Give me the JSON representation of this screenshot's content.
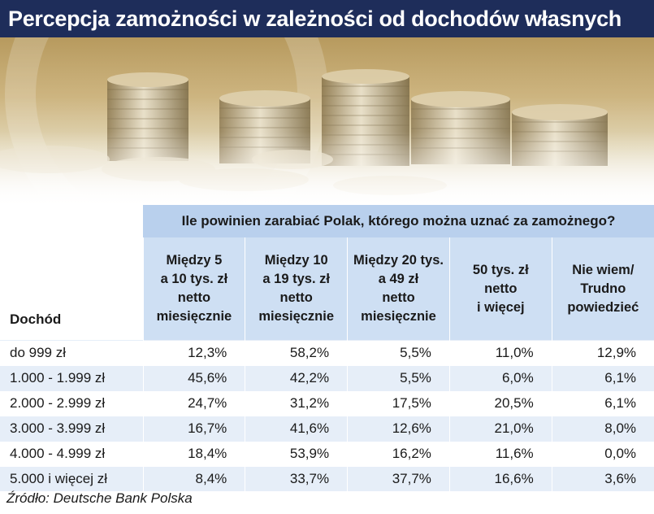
{
  "header": {
    "title": "Percepcja zamożności w zależności od dochodów własnych"
  },
  "chart_data": {
    "type": "table",
    "super_header": "Ile powinien zarabiać Polak, którego można uznać za zamożnego?",
    "row_header_label": "Dochód",
    "columns": [
      [
        "Między 5",
        "a 10 tys. zł",
        "netto",
        "miesięcznie"
      ],
      [
        "Między 10",
        "a 19 tys. zł",
        "netto",
        "miesięcznie"
      ],
      [
        "Między 20 tys.",
        "a 49 zł",
        "netto",
        "miesięcznie"
      ],
      [
        "50 tys. zł",
        "netto",
        "i więcej"
      ],
      [
        "Nie wiem/",
        "Trudno",
        "powiedzieć"
      ]
    ],
    "rows": [
      {
        "label": "do 999 zł",
        "values": [
          "12,3%",
          "58,2%",
          "5,5%",
          "11,0%",
          "12,9%"
        ]
      },
      {
        "label": "1.000 - 1.999 zł",
        "values": [
          "45,6%",
          "42,2%",
          "5,5%",
          "6,0%",
          "6,1%"
        ]
      },
      {
        "label": "2.000 - 2.999 zł",
        "values": [
          "24,7%",
          "31,2%",
          "17,5%",
          "20,5%",
          "6,1%"
        ]
      },
      {
        "label": "3.000 - 3.999 zł",
        "values": [
          "16,7%",
          "41,6%",
          "12,6%",
          "21,0%",
          "8,0%"
        ]
      },
      {
        "label": "4.000 - 4.999 zł",
        "values": [
          "18,4%",
          "53,9%",
          "16,2%",
          "11,6%",
          "0,0%"
        ]
      },
      {
        "label": "5.000 i więcej zł",
        "values": [
          "8,4%",
          "33,7%",
          "37,7%",
          "16,6%",
          "3,6%"
        ]
      }
    ]
  },
  "footer": {
    "source": "Źródło: Deutsche Bank Polska"
  },
  "colors": {
    "title_bar": "#1e2d5a",
    "super_header_bg": "#b9d0ed",
    "header_bg": "#cedff3",
    "alt_row_bg": "#e6eef8"
  }
}
